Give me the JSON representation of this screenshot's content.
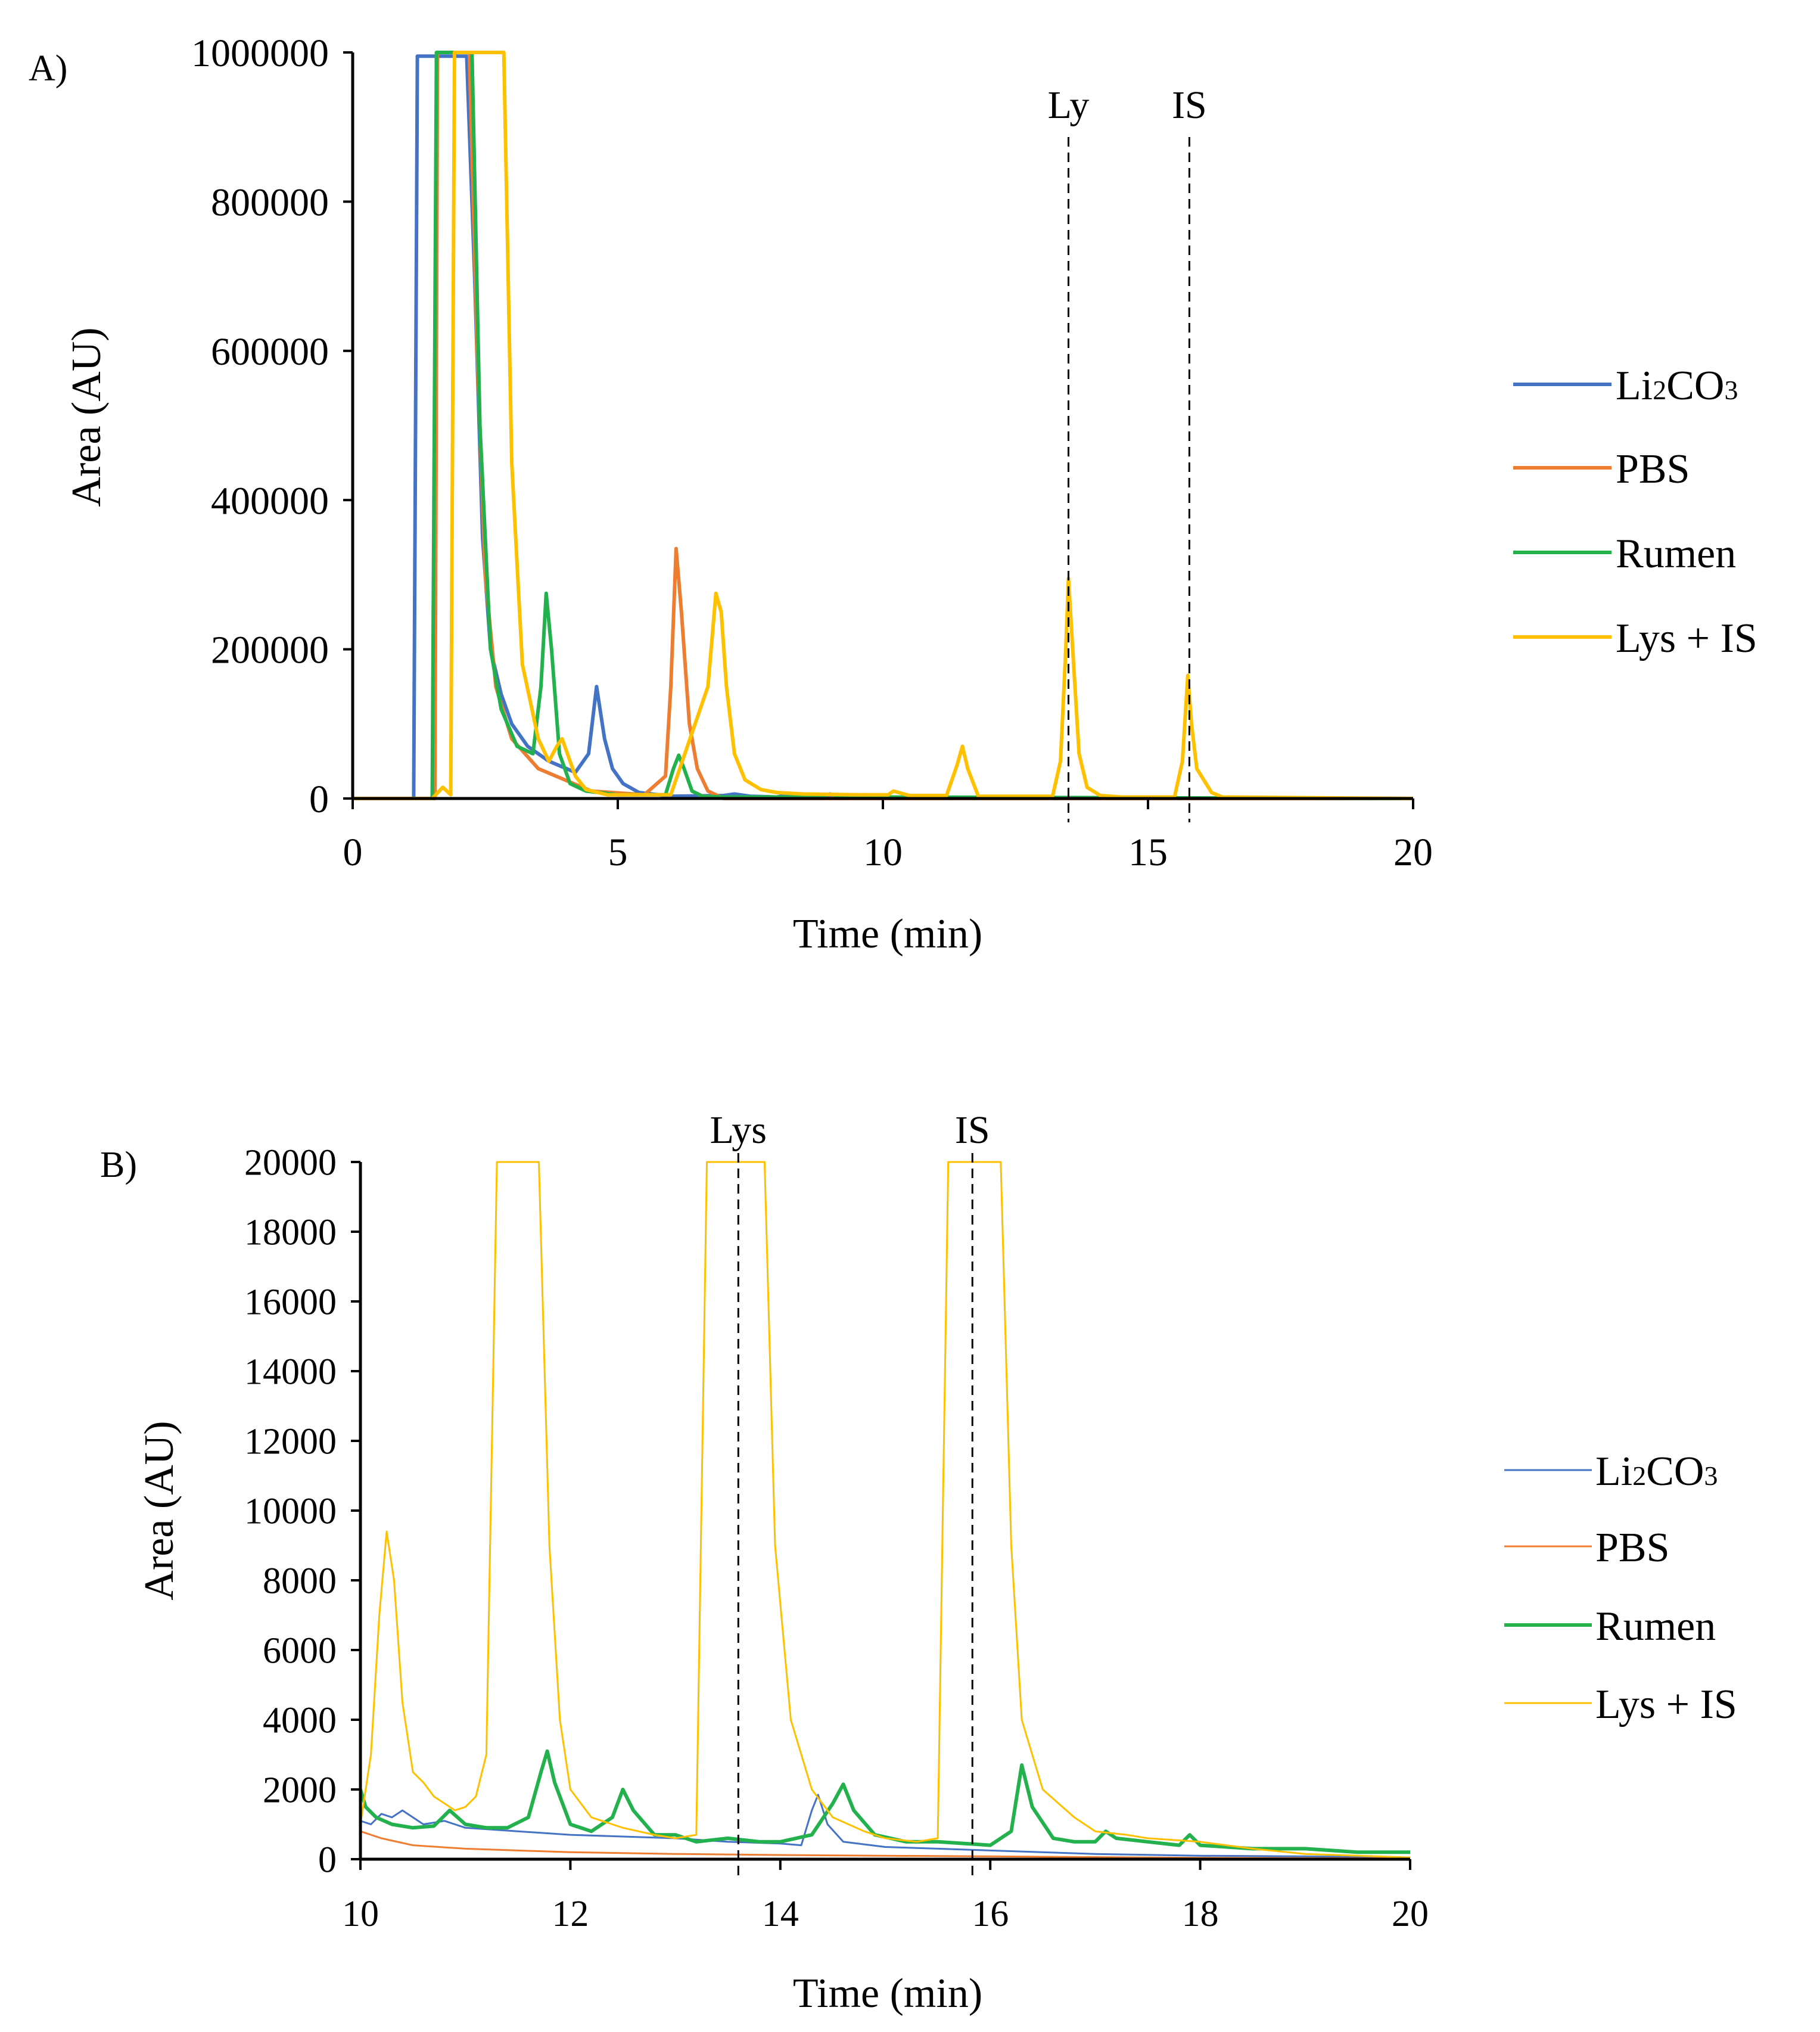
{
  "colors": {
    "li2co3": "#4472C4",
    "pbs": "#ED7D31",
    "rumen": "#22B14C",
    "lys_is": "#FFC000",
    "axis": "#000000"
  },
  "chart_data": [
    {
      "panel": "A)",
      "type": "line",
      "xlabel": "Time (min)",
      "ylabel": "Area (AU)",
      "xlim": [
        0,
        20
      ],
      "ylim": [
        0,
        1000000
      ],
      "xticks": [
        0,
        5,
        10,
        15,
        20
      ],
      "yticks": [
        0,
        200000,
        400000,
        600000,
        800000,
        1000000
      ],
      "legend_position": "right",
      "markers": [
        {
          "label": "Ly",
          "x": 13.5
        },
        {
          "label": "IS",
          "x": 15.78
        }
      ],
      "series": [
        {
          "name": "Li₂CO₃",
          "label_main": "Li",
          "label_sub1": "2",
          "label_mid": "CO",
          "label_sub2": "3",
          "color": "#4472C4",
          "line_weight": "thick",
          "x": [
            0,
            1.15,
            1.22,
            2.15,
            2.3,
            2.45,
            2.6,
            2.8,
            3.0,
            3.3,
            3.7,
            4.2,
            4.45,
            4.6,
            4.75,
            4.9,
            5.1,
            5.4,
            6.0,
            7.0,
            7.2,
            7.5,
            8.0,
            8.2,
            8.5,
            9.0,
            20
          ],
          "y": [
            0,
            0,
            995000,
            995000,
            700000,
            350000,
            200000,
            140000,
            100000,
            70000,
            50000,
            35000,
            60000,
            150000,
            80000,
            40000,
            20000,
            8000,
            3000,
            4000,
            6000,
            3000,
            2000,
            5000,
            2000,
            1000,
            0
          ]
        },
        {
          "name": "PBS",
          "color": "#ED7D31",
          "line_weight": "thick",
          "x": [
            0,
            1.55,
            1.6,
            2.2,
            2.35,
            2.5,
            2.7,
            3.0,
            3.5,
            4.5,
            5.5,
            5.9,
            6.0,
            6.1,
            6.2,
            6.35,
            6.5,
            6.7,
            7.0,
            20
          ],
          "y": [
            0,
            0,
            1000000,
            1000000,
            600000,
            300000,
            150000,
            80000,
            40000,
            10000,
            5000,
            30000,
            150000,
            335000,
            250000,
            100000,
            40000,
            10000,
            0,
            0
          ]
        },
        {
          "name": "Rumen",
          "color": "#22B14C",
          "line_weight": "thick",
          "x": [
            0,
            1.5,
            1.58,
            2.25,
            2.4,
            2.6,
            2.8,
            3.1,
            3.4,
            3.55,
            3.65,
            3.75,
            3.9,
            4.1,
            4.4,
            5.0,
            5.9,
            6.05,
            6.15,
            6.25,
            6.4,
            6.6,
            7.0,
            8.8,
            9.0,
            9.2,
            9.6,
            9.7,
            9.8,
            20
          ],
          "y": [
            0,
            0,
            1000000,
            1000000,
            500000,
            200000,
            120000,
            70000,
            60000,
            150000,
            275000,
            200000,
            60000,
            20000,
            10000,
            5000,
            5000,
            40000,
            58000,
            40000,
            10000,
            3000,
            2000,
            2000,
            6000,
            2000,
            2000,
            5000,
            2000,
            0
          ]
        },
        {
          "name": "Lys + IS",
          "color": "#FFC000",
          "line_weight": "thick",
          "x": [
            0,
            1.5,
            1.7,
            1.85,
            1.92,
            2.85,
            3.0,
            3.2,
            3.5,
            3.7,
            3.85,
            3.95,
            4.05,
            4.2,
            4.4,
            4.8,
            6.0,
            6.7,
            6.85,
            6.95,
            7.05,
            7.2,
            7.4,
            7.7,
            8.0,
            8.5,
            9.5,
            10.1,
            10.2,
            10.3,
            10.5,
            11.2,
            11.4,
            11.5,
            11.6,
            11.8,
            13.2,
            13.35,
            13.45,
            13.5,
            13.58,
            13.7,
            13.85,
            14.1,
            14.5,
            15.5,
            15.65,
            15.75,
            15.82,
            15.92,
            16.05,
            16.2,
            16.4,
            20
          ],
          "y": [
            0,
            0,
            15000,
            5000,
            1000000,
            1000000,
            450000,
            180000,
            80000,
            50000,
            70000,
            80000,
            60000,
            30000,
            12000,
            5000,
            5000,
            150000,
            275000,
            250000,
            150000,
            60000,
            25000,
            12000,
            8000,
            6000,
            5000,
            5000,
            10000,
            8000,
            4000,
            4000,
            45000,
            70000,
            40000,
            3000,
            3000,
            50000,
            200000,
            295000,
            200000,
            60000,
            15000,
            4000,
            2000,
            2000,
            50000,
            165000,
            100000,
            40000,
            25000,
            8000,
            2000,
            0
          ]
        }
      ]
    },
    {
      "panel": "B)",
      "type": "line",
      "xlabel": "Time (min)",
      "ylabel": "Area (AU)",
      "xlim": [
        10,
        20
      ],
      "ylim": [
        0,
        20000
      ],
      "xticks": [
        10,
        12,
        14,
        16,
        18,
        20
      ],
      "yticks": [
        0,
        2000,
        4000,
        6000,
        8000,
        10000,
        12000,
        14000,
        16000,
        18000,
        20000
      ],
      "legend_position": "right",
      "markers": [
        {
          "label": "Lys",
          "x": 13.6
        },
        {
          "label": "IS",
          "x": 15.83
        }
      ],
      "series": [
        {
          "name": "Li₂CO₃",
          "label_main": "Li",
          "label_sub1": "2",
          "label_mid": "CO",
          "label_sub2": "3",
          "color": "#4472C4",
          "line_weight": "thin",
          "x": [
            10,
            10.1,
            10.2,
            10.3,
            10.4,
            10.5,
            10.6,
            10.8,
            11.0,
            11.5,
            12.0,
            12.5,
            13.0,
            13.5,
            14.0,
            14.2,
            14.3,
            14.36,
            14.45,
            14.6,
            15.0,
            15.5,
            16.0,
            17.0,
            18.0,
            19.0,
            20.0
          ],
          "y": [
            1100,
            1000,
            1300,
            1200,
            1400,
            1200,
            1000,
            1100,
            900,
            800,
            700,
            650,
            600,
            500,
            450,
            400,
            1400,
            1850,
            1000,
            500,
            350,
            300,
            250,
            150,
            100,
            80,
            50
          ]
        },
        {
          "name": "PBS",
          "color": "#ED7D31",
          "line_weight": "thin",
          "x": [
            10,
            10.2,
            10.5,
            11.0,
            11.5,
            12.0,
            13.0,
            14.0,
            15.0,
            16.0,
            17.0,
            18.0,
            19.0,
            20.0
          ],
          "y": [
            800,
            600,
            400,
            300,
            250,
            200,
            150,
            120,
            100,
            80,
            60,
            40,
            30,
            20
          ]
        },
        {
          "name": "Rumen",
          "color": "#22B14C",
          "line_weight": "thick",
          "x": [
            10,
            10.05,
            10.15,
            10.3,
            10.5,
            10.7,
            10.85,
            11.0,
            11.2,
            11.4,
            11.6,
            11.72,
            11.78,
            11.85,
            12.0,
            12.2,
            12.4,
            12.5,
            12.6,
            12.8,
            13.0,
            13.2,
            13.5,
            13.8,
            14.0,
            14.3,
            14.5,
            14.6,
            14.7,
            14.9,
            15.2,
            15.5,
            16.0,
            16.2,
            16.3,
            16.4,
            16.6,
            16.8,
            17.0,
            17.1,
            17.2,
            17.5,
            17.8,
            17.9,
            18.0,
            18.5,
            19.0,
            19.5,
            20.0
          ],
          "y": [
            2000,
            1500,
            1200,
            1000,
            900,
            950,
            1400,
            1000,
            900,
            900,
            1200,
            2500,
            3100,
            2200,
            1000,
            800,
            1200,
            2000,
            1400,
            700,
            700,
            500,
            600,
            500,
            500,
            700,
            1600,
            2150,
            1400,
            700,
            500,
            500,
            400,
            800,
            2700,
            1500,
            600,
            500,
            500,
            800,
            600,
            500,
            400,
            700,
            400,
            300,
            300,
            200,
            200
          ]
        },
        {
          "name": "Lys + IS",
          "color": "#FFC000",
          "line_weight": "thin",
          "x": [
            10,
            10.1,
            10.18,
            10.25,
            10.32,
            10.4,
            10.5,
            10.6,
            10.7,
            10.8,
            10.9,
            11.0,
            11.1,
            11.2,
            11.3,
            11.7,
            11.8,
            11.9,
            12.0,
            12.2,
            12.5,
            12.8,
            13.0,
            13.2,
            13.3,
            13.85,
            13.95,
            14.1,
            14.3,
            14.5,
            14.8,
            15.0,
            15.3,
            15.5,
            15.6,
            16.1,
            16.2,
            16.3,
            16.5,
            16.8,
            17.0,
            17.3,
            17.5,
            18.0,
            18.5,
            19.0,
            20.0
          ],
          "y": [
            1000,
            3000,
            7000,
            9400,
            8000,
            4500,
            2500,
            2200,
            1800,
            1600,
            1400,
            1500,
            1800,
            3000,
            20000,
            20000,
            9000,
            4000,
            2000,
            1200,
            900,
            700,
            600,
            700,
            20000,
            20000,
            9000,
            4000,
            2000,
            1200,
            800,
            600,
            500,
            600,
            20000,
            20000,
            9000,
            4000,
            2000,
            1200,
            800,
            700,
            600,
            500,
            300,
            150,
            50
          ]
        }
      ]
    }
  ]
}
